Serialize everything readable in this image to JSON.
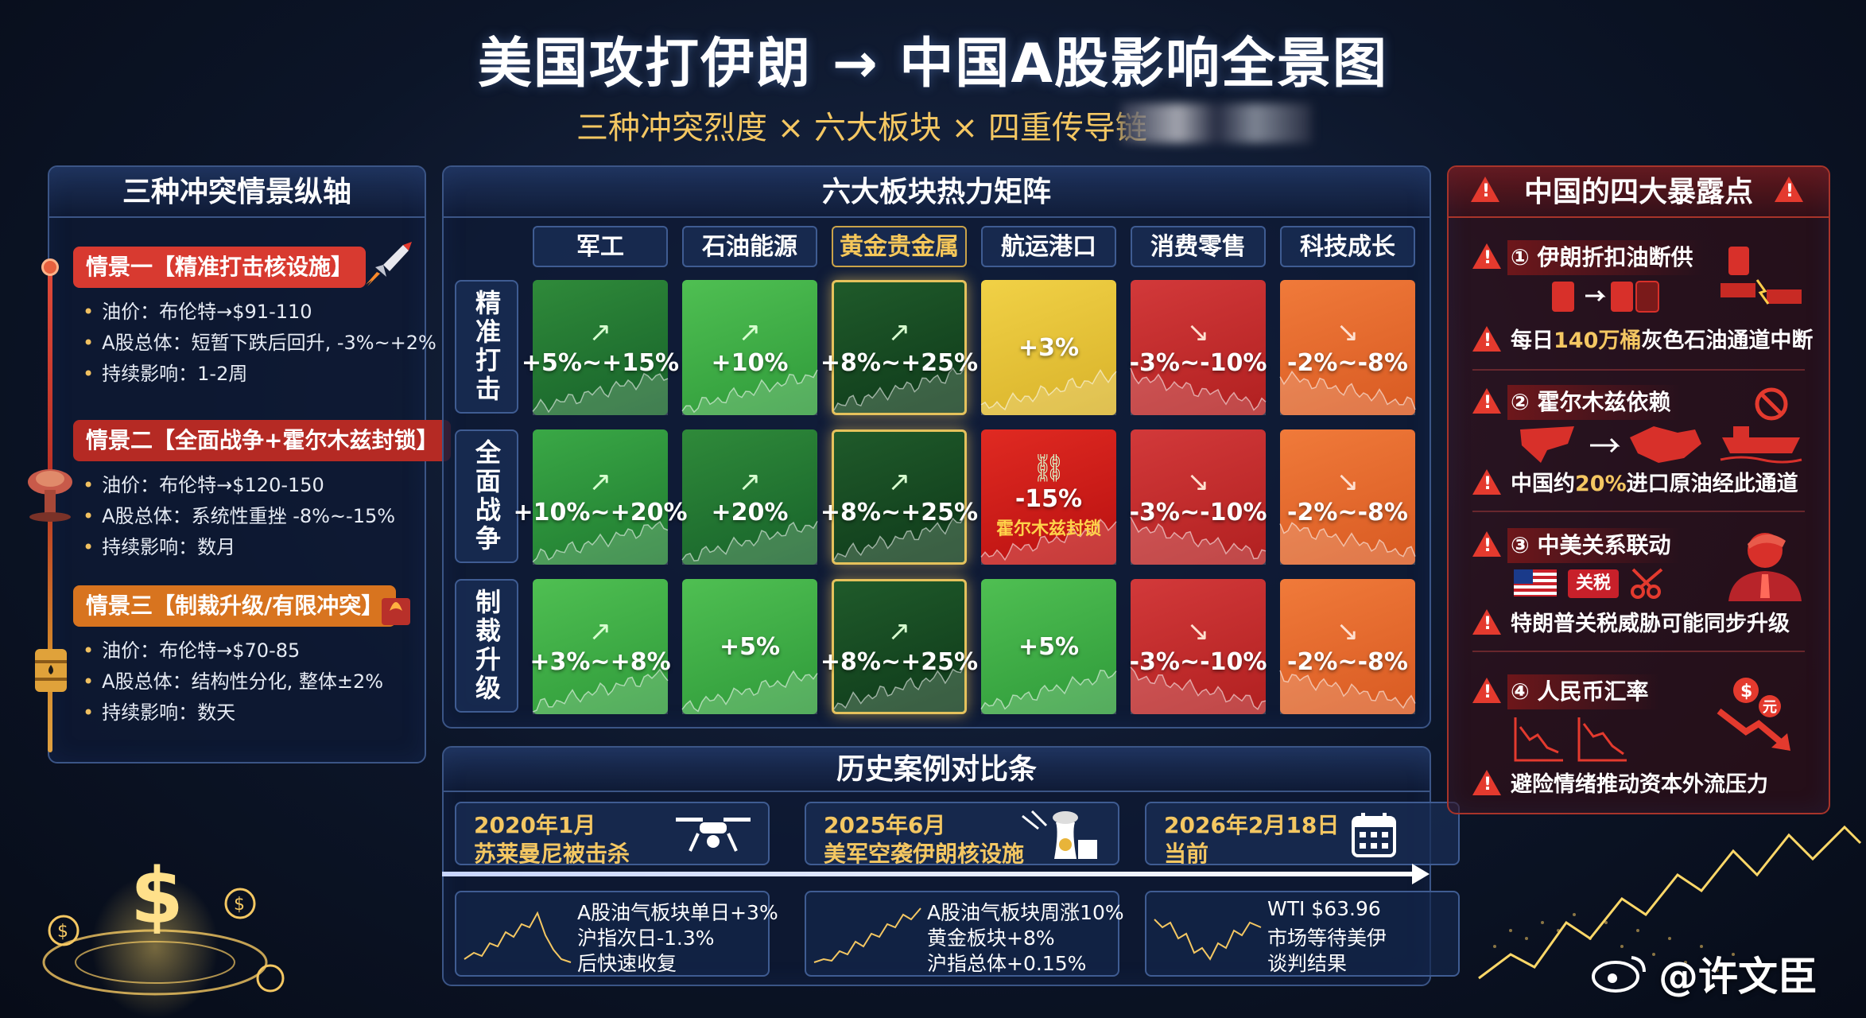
{
  "header": {
    "title": "美国攻打伊朗 → 中国A股影响全景图",
    "subtitle": "三种冲突烈度 × 六大板块 × 四重传导链"
  },
  "left_panel": {
    "title": "三种冲突情景纵轴",
    "scenarios": [
      {
        "badge": "情景一【精准打击核设施】",
        "color": "#d83a30",
        "icon": "rocket-icon",
        "lines": [
          "油价：布伦特→$91-110",
          "A股总体：短暂下跌后回升, -3%~+2%",
          "持续影响：1-2周"
        ]
      },
      {
        "badge": "情景二【全面战争+霍尔木兹封锁】",
        "color": "#b52a24",
        "icon": "mushroom-cloud-icon",
        "lines": [
          "油价：布伦特→$120-150",
          "A股总体：系统性重挫 -8%~-15%",
          "持续影响：数月"
        ]
      },
      {
        "badge": "情景三【制裁升级/有限冲突】",
        "color": "#d8741f",
        "icon": "oil-barrel-icon",
        "lines": [
          "油价：布伦特→$70-85",
          "A股总体：结构性分化, 整体±2%",
          "持续影响：数天"
        ]
      }
    ]
  },
  "heatmap": {
    "title": "六大板块热力矩阵",
    "columns": [
      "军工",
      "石油能源",
      "黄金贵金属",
      "航运港口",
      "消费零售",
      "科技成长"
    ],
    "rows": [
      {
        "label": "精准打击",
        "cells": [
          {
            "value": "+5%~+15%",
            "style": "c-green-d",
            "trend": "up"
          },
          {
            "value": "+10%",
            "style": "c-green-l",
            "trend": "up"
          },
          {
            "value": "+8%~+25%",
            "style": "c-gold",
            "trend": "up"
          },
          {
            "value": "+3%",
            "style": "c-yellow",
            "trend": "none"
          },
          {
            "value": "-3%~-10%",
            "style": "c-red",
            "trend": "down"
          },
          {
            "value": "-2%~-8%",
            "style": "c-orange",
            "trend": "down"
          }
        ]
      },
      {
        "label": "全面战争",
        "cells": [
          {
            "value": "+10%~+20%",
            "style": "c-green-m",
            "trend": "up"
          },
          {
            "value": "+20%",
            "style": "c-green-d",
            "trend": "up"
          },
          {
            "value": "+8%~+25%",
            "style": "c-gold",
            "trend": "up"
          },
          {
            "value": "-15%",
            "note": "霍尔木兹封锁",
            "style": "c-red-hot",
            "trend": "chain"
          },
          {
            "value": "-3%~-10%",
            "style": "c-red",
            "trend": "down"
          },
          {
            "value": "-2%~-8%",
            "style": "c-orange",
            "trend": "down"
          }
        ]
      },
      {
        "label": "制裁升级",
        "cells": [
          {
            "value": "+3%~+8%",
            "style": "c-green-l",
            "trend": "up"
          },
          {
            "value": "+5%",
            "style": "c-green-l",
            "trend": "none"
          },
          {
            "value": "+8%~+25%",
            "style": "c-gold",
            "trend": "up"
          },
          {
            "value": "+5%",
            "style": "c-green-l",
            "trend": "none"
          },
          {
            "value": "-3%~-10%",
            "style": "c-red",
            "trend": "down"
          },
          {
            "value": "-2%~-8%",
            "style": "c-orange",
            "trend": "down"
          }
        ]
      }
    ]
  },
  "history": {
    "title": "历史案例对比条",
    "cases": [
      {
        "date": "2020年1月",
        "event": "苏莱曼尼被击杀",
        "icon": "drone-icon",
        "lines": [
          "A股油气板块单日+3%",
          "沪指次日-1.3%",
          "后快速收复"
        ]
      },
      {
        "date": "2025年6月",
        "event": "美军空袭伊朗核设施",
        "icon": "nuclear-plant-icon",
        "lines": [
          "A股油气板块周涨10%",
          "黄金板块+8%",
          "沪指总体+0.15%"
        ]
      },
      {
        "date": "2026年2月18日",
        "event": "当前",
        "icon": "calendar-icon",
        "lines": [
          "WTI $63.96",
          "市场等待美伊",
          "谈判结果"
        ]
      }
    ]
  },
  "right_panel": {
    "title": "中国的四大暴露点",
    "points": [
      {
        "title": "① 伊朗折扣油断供",
        "text_pre": "每日",
        "text_hl": "140万桶",
        "text_post": "灰色石油通道中断",
        "icon": "broken-pipe-icon"
      },
      {
        "title": "② 霍尔木兹依赖",
        "text_pre": "中国约",
        "text_hl": "20%",
        "text_post": "进口原油经此通道",
        "icon": "tanker-icon"
      },
      {
        "title": "③ 中美关系联动",
        "text_pre": "",
        "text_hl": "",
        "text_post": "特朗普关税威胁可能同步升级",
        "tag": "关税",
        "icon": "person-icon"
      },
      {
        "title": "④ 人民币汇率",
        "text_pre": "",
        "text_hl": "",
        "text_post": "避险情绪推动资本外流压力",
        "icon": "currency-down-icon"
      }
    ]
  },
  "watermark": "@许文臣"
}
